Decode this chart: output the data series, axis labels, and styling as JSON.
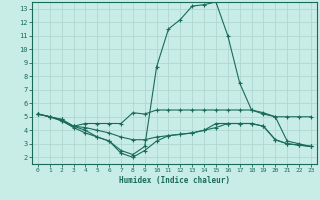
{
  "xlabel": "Humidex (Indice chaleur)",
  "bg_color": "#c8ece6",
  "line_color": "#1a6b5a",
  "grid_color": "#b0d8d0",
  "xlim": [
    -0.5,
    23.5
  ],
  "ylim": [
    1.5,
    13.5
  ],
  "yticks": [
    2,
    3,
    4,
    5,
    6,
    7,
    8,
    9,
    10,
    11,
    12,
    13
  ],
  "xticks": [
    0,
    1,
    2,
    3,
    4,
    5,
    6,
    7,
    8,
    9,
    10,
    11,
    12,
    13,
    14,
    15,
    16,
    17,
    18,
    19,
    20,
    21,
    22,
    23
  ],
  "line1_x": [
    0,
    1,
    2,
    3,
    4,
    5,
    6,
    7,
    8,
    9,
    10,
    11,
    12,
    13,
    14,
    15,
    16,
    17,
    18,
    19,
    20,
    21,
    22,
    23
  ],
  "line1_y": [
    5.2,
    5.0,
    4.8,
    4.3,
    4.5,
    4.5,
    4.5,
    4.5,
    5.3,
    5.2,
    5.5,
    5.5,
    5.5,
    5.5,
    5.5,
    5.5,
    5.5,
    5.5,
    5.5,
    5.3,
    5.0,
    5.0,
    5.0,
    5.0
  ],
  "line2_x": [
    0,
    1,
    2,
    3,
    4,
    5,
    6,
    7,
    8,
    9,
    10,
    11,
    12,
    13,
    14,
    15,
    16,
    17,
    18,
    19,
    20,
    21,
    22,
    23
  ],
  "line2_y": [
    5.2,
    5.0,
    4.7,
    4.3,
    4.2,
    4.0,
    3.8,
    3.5,
    3.3,
    3.3,
    3.5,
    3.6,
    3.7,
    3.8,
    4.0,
    4.5,
    4.5,
    4.5,
    4.5,
    4.3,
    3.3,
    3.0,
    2.9,
    2.8
  ],
  "line3_x": [
    0,
    1,
    2,
    3,
    4,
    5,
    6,
    7,
    8,
    9,
    10,
    11,
    12,
    13,
    14,
    15,
    16,
    17,
    18,
    19,
    20,
    21,
    22,
    23
  ],
  "line3_y": [
    5.2,
    5.0,
    4.8,
    4.3,
    4.0,
    3.5,
    3.2,
    2.5,
    2.2,
    2.8,
    8.7,
    11.5,
    12.2,
    13.2,
    13.3,
    13.5,
    11.0,
    7.5,
    5.5,
    5.2,
    5.0,
    3.2,
    3.0,
    2.8
  ],
  "line4_x": [
    0,
    1,
    2,
    3,
    4,
    5,
    6,
    7,
    8,
    9,
    10,
    11,
    12,
    13,
    14,
    15,
    16,
    17,
    18,
    19,
    20,
    21,
    22,
    23
  ],
  "line4_y": [
    5.2,
    5.0,
    4.7,
    4.2,
    3.8,
    3.5,
    3.2,
    2.3,
    2.0,
    2.5,
    3.2,
    3.6,
    3.7,
    3.8,
    4.0,
    4.2,
    4.5,
    4.5,
    4.5,
    4.3,
    3.3,
    3.0,
    2.9,
    2.8
  ]
}
